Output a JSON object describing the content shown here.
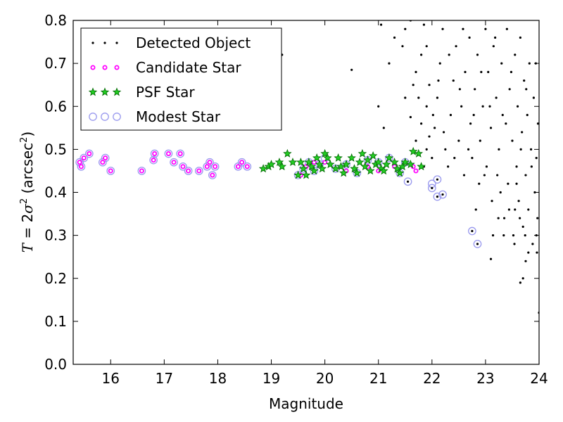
{
  "chart_data": {
    "type": "scatter",
    "xlabel": "Magnitude",
    "ylabel": {
      "var": "T",
      "eq": " = 2",
      "sigma": "σ",
      "sup": "2",
      "unit": " (arcsec",
      "unit_sup": "2",
      "close": ")"
    },
    "xlim": [
      15.3,
      24
    ],
    "ylim": [
      0,
      0.8
    ],
    "xticks": [
      "16",
      "17",
      "18",
      "19",
      "20",
      "21",
      "22",
      "23",
      "24"
    ],
    "yticks": [
      "0.0",
      "0.1",
      "0.2",
      "0.3",
      "0.4",
      "0.5",
      "0.6",
      "0.7",
      "0.8"
    ],
    "grid": false,
    "legend_position": "upper-left",
    "colors": {
      "detected": "#000000",
      "candidate": "#ff00ff",
      "psf_fill": "#22cc22",
      "psf_edge": "#006600",
      "modest": "#9999ee"
    },
    "series": [
      {
        "name": "Detected Object",
        "marker": "dot",
        "points": [
          [
            15.42,
            0.47
          ],
          [
            15.5,
            0.48
          ],
          [
            15.6,
            0.49
          ],
          [
            15.85,
            0.47
          ],
          [
            15.9,
            0.48
          ],
          [
            16.0,
            0.45
          ],
          [
            16.58,
            0.45
          ],
          [
            16.8,
            0.475
          ],
          [
            16.82,
            0.49
          ],
          [
            17.08,
            0.49
          ],
          [
            17.18,
            0.47
          ],
          [
            17.3,
            0.49
          ],
          [
            17.35,
            0.46
          ],
          [
            17.45,
            0.45
          ],
          [
            17.65,
            0.45
          ],
          [
            17.8,
            0.46
          ],
          [
            17.85,
            0.47
          ],
          [
            17.9,
            0.44
          ],
          [
            17.95,
            0.46
          ],
          [
            18.38,
            0.46
          ],
          [
            18.45,
            0.47
          ],
          [
            18.55,
            0.46
          ],
          [
            19.2,
            0.72
          ],
          [
            20.5,
            0.685
          ],
          [
            21.2,
            0.7
          ],
          [
            21.05,
            0.79
          ],
          [
            21.3,
            0.76
          ],
          [
            21.0,
            0.6
          ],
          [
            21.1,
            0.55
          ],
          [
            21.5,
            0.62
          ],
          [
            21.6,
            0.575
          ],
          [
            21.7,
            0.52
          ],
          [
            21.8,
            0.56
          ],
          [
            21.9,
            0.6
          ],
          [
            21.55,
            0.425
          ],
          [
            21.95,
            0.65
          ],
          [
            22.0,
            0.41
          ],
          [
            22.1,
            0.39
          ],
          [
            22.1,
            0.43
          ],
          [
            22.2,
            0.395
          ],
          [
            22.75,
            0.31
          ],
          [
            22.85,
            0.28
          ],
          [
            23.1,
            0.245
          ],
          [
            23.55,
            0.36
          ],
          [
            23.65,
            0.19
          ],
          [
            23.7,
            0.2
          ],
          [
            23.75,
            0.24
          ],
          [
            23.8,
            0.26
          ],
          [
            23.95,
            0.3
          ],
          [
            24.0,
            0.12
          ],
          [
            21.5,
            0.78
          ],
          [
            21.6,
            0.8
          ],
          [
            21.45,
            0.74
          ],
          [
            21.7,
            0.68
          ],
          [
            21.8,
            0.72
          ],
          [
            21.85,
            0.79
          ],
          [
            21.9,
            0.74
          ],
          [
            21.75,
            0.62
          ],
          [
            21.65,
            0.65
          ],
          [
            21.95,
            0.53
          ],
          [
            21.9,
            0.5
          ],
          [
            21.85,
            0.46
          ],
          [
            22.0,
            0.48
          ],
          [
            22.05,
            0.55
          ],
          [
            22.1,
            0.62
          ],
          [
            22.15,
            0.7
          ],
          [
            22.2,
            0.78
          ],
          [
            22.25,
            0.5
          ],
          [
            22.3,
            0.46
          ],
          [
            22.35,
            0.58
          ],
          [
            22.4,
            0.66
          ],
          [
            22.45,
            0.74
          ],
          [
            22.5,
            0.52
          ],
          [
            22.55,
            0.6
          ],
          [
            22.6,
            0.44
          ],
          [
            22.62,
            0.68
          ],
          [
            22.7,
            0.76
          ],
          [
            22.72,
            0.56
          ],
          [
            22.75,
            0.48
          ],
          [
            22.8,
            0.64
          ],
          [
            22.85,
            0.72
          ],
          [
            22.88,
            0.42
          ],
          [
            22.9,
            0.52
          ],
          [
            22.95,
            0.6
          ],
          [
            23.0,
            0.78
          ],
          [
            23.02,
            0.46
          ],
          [
            23.05,
            0.68
          ],
          [
            23.1,
            0.55
          ],
          [
            23.12,
            0.38
          ],
          [
            23.15,
            0.74
          ],
          [
            23.2,
            0.62
          ],
          [
            23.22,
            0.44
          ],
          [
            23.25,
            0.5
          ],
          [
            23.3,
            0.7
          ],
          [
            23.32,
            0.58
          ],
          [
            23.35,
            0.34
          ],
          [
            23.4,
            0.78
          ],
          [
            23.42,
            0.42
          ],
          [
            23.45,
            0.64
          ],
          [
            23.5,
            0.52
          ],
          [
            23.52,
            0.3
          ],
          [
            23.55,
            0.72
          ],
          [
            23.58,
            0.46
          ],
          [
            23.6,
            0.6
          ],
          [
            23.62,
            0.38
          ],
          [
            23.65,
            0.76
          ],
          [
            23.68,
            0.54
          ],
          [
            23.7,
            0.32
          ],
          [
            23.72,
            0.66
          ],
          [
            23.75,
            0.44
          ],
          [
            23.78,
            0.58
          ],
          [
            23.8,
            0.36
          ],
          [
            23.82,
            0.7
          ],
          [
            23.85,
            0.5
          ],
          [
            23.88,
            0.28
          ],
          [
            23.9,
            0.62
          ],
          [
            23.92,
            0.4
          ],
          [
            23.95,
            0.48
          ],
          [
            23.97,
            0.34
          ],
          [
            23.98,
            0.56
          ],
          [
            22.02,
            0.58
          ],
          [
            22.12,
            0.66
          ],
          [
            22.22,
            0.54
          ],
          [
            22.32,
            0.72
          ],
          [
            22.42,
            0.48
          ],
          [
            22.52,
            0.64
          ],
          [
            22.58,
            0.78
          ],
          [
            22.68,
            0.5
          ],
          [
            22.78,
            0.58
          ],
          [
            22.82,
            0.36
          ],
          [
            22.92,
            0.68
          ],
          [
            22.98,
            0.44
          ],
          [
            23.08,
            0.6
          ],
          [
            23.18,
            0.76
          ],
          [
            23.28,
            0.4
          ],
          [
            23.38,
            0.56
          ],
          [
            23.48,
            0.68
          ],
          [
            23.58,
            0.42
          ],
          [
            23.66,
            0.5
          ],
          [
            23.76,
            0.64
          ],
          [
            23.86,
            0.46
          ],
          [
            23.94,
            0.7
          ],
          [
            23.96,
            0.26
          ],
          [
            23.74,
            0.3
          ],
          [
            23.64,
            0.34
          ],
          [
            23.54,
            0.28
          ],
          [
            23.44,
            0.36
          ],
          [
            23.34,
            0.3
          ],
          [
            23.24,
            0.34
          ],
          [
            23.14,
            0.3
          ]
        ]
      },
      {
        "name": "Candidate Star",
        "marker": "small-circle",
        "points": [
          [
            15.42,
            0.47
          ],
          [
            15.45,
            0.46
          ],
          [
            15.5,
            0.48
          ],
          [
            15.6,
            0.49
          ],
          [
            15.85,
            0.47
          ],
          [
            15.9,
            0.48
          ],
          [
            16.0,
            0.45
          ],
          [
            16.58,
            0.45
          ],
          [
            16.8,
            0.475
          ],
          [
            16.82,
            0.49
          ],
          [
            17.08,
            0.49
          ],
          [
            17.18,
            0.47
          ],
          [
            17.3,
            0.49
          ],
          [
            17.35,
            0.46
          ],
          [
            17.45,
            0.45
          ],
          [
            17.65,
            0.45
          ],
          [
            17.8,
            0.46
          ],
          [
            17.85,
            0.47
          ],
          [
            17.9,
            0.44
          ],
          [
            17.95,
            0.46
          ],
          [
            18.38,
            0.46
          ],
          [
            18.45,
            0.47
          ],
          [
            18.55,
            0.46
          ],
          [
            19.55,
            0.44
          ],
          [
            19.65,
            0.46
          ],
          [
            19.8,
            0.47
          ],
          [
            20.0,
            0.47
          ],
          [
            20.4,
            0.45
          ],
          [
            20.8,
            0.46
          ],
          [
            21.0,
            0.45
          ],
          [
            21.3,
            0.46
          ],
          [
            21.65,
            0.46
          ],
          [
            21.7,
            0.45
          ]
        ]
      },
      {
        "name": "PSF Star",
        "marker": "star",
        "points": [
          [
            18.85,
            0.455
          ],
          [
            18.95,
            0.46
          ],
          [
            19.0,
            0.465
          ],
          [
            19.15,
            0.47
          ],
          [
            19.2,
            0.46
          ],
          [
            19.3,
            0.49
          ],
          [
            19.4,
            0.47
          ],
          [
            19.5,
            0.44
          ],
          [
            19.55,
            0.47
          ],
          [
            19.6,
            0.455
          ],
          [
            19.65,
            0.44
          ],
          [
            19.7,
            0.47
          ],
          [
            19.75,
            0.46
          ],
          [
            19.8,
            0.45
          ],
          [
            19.85,
            0.48
          ],
          [
            19.9,
            0.465
          ],
          [
            19.95,
            0.455
          ],
          [
            20.0,
            0.49
          ],
          [
            20.05,
            0.48
          ],
          [
            20.1,
            0.465
          ],
          [
            20.2,
            0.455
          ],
          [
            20.25,
            0.48
          ],
          [
            20.3,
            0.46
          ],
          [
            20.35,
            0.445
          ],
          [
            20.4,
            0.465
          ],
          [
            20.5,
            0.48
          ],
          [
            20.55,
            0.455
          ],
          [
            20.6,
            0.445
          ],
          [
            20.65,
            0.47
          ],
          [
            20.7,
            0.49
          ],
          [
            20.75,
            0.46
          ],
          [
            20.8,
            0.475
          ],
          [
            20.85,
            0.45
          ],
          [
            20.9,
            0.485
          ],
          [
            20.95,
            0.465
          ],
          [
            21.0,
            0.47
          ],
          [
            21.05,
            0.455
          ],
          [
            21.1,
            0.45
          ],
          [
            21.15,
            0.465
          ],
          [
            21.2,
            0.48
          ],
          [
            21.3,
            0.47
          ],
          [
            21.35,
            0.455
          ],
          [
            21.4,
            0.445
          ],
          [
            21.45,
            0.46
          ],
          [
            21.5,
            0.47
          ],
          [
            21.6,
            0.465
          ],
          [
            21.65,
            0.495
          ],
          [
            21.75,
            0.49
          ],
          [
            21.8,
            0.46
          ]
        ]
      },
      {
        "name": "Modest Star",
        "marker": "open-circle",
        "points": [
          [
            15.42,
            0.47
          ],
          [
            15.45,
            0.46
          ],
          [
            15.5,
            0.48
          ],
          [
            15.6,
            0.49
          ],
          [
            15.85,
            0.47
          ],
          [
            15.9,
            0.48
          ],
          [
            16.0,
            0.45
          ],
          [
            16.58,
            0.45
          ],
          [
            16.8,
            0.475
          ],
          [
            16.82,
            0.49
          ],
          [
            17.08,
            0.49
          ],
          [
            17.18,
            0.47
          ],
          [
            17.3,
            0.49
          ],
          [
            17.35,
            0.46
          ],
          [
            17.45,
            0.45
          ],
          [
            17.65,
            0.45
          ],
          [
            17.8,
            0.46
          ],
          [
            17.85,
            0.47
          ],
          [
            17.9,
            0.44
          ],
          [
            17.95,
            0.46
          ],
          [
            18.38,
            0.46
          ],
          [
            18.45,
            0.47
          ],
          [
            18.55,
            0.46
          ],
          [
            19.5,
            0.44
          ],
          [
            19.6,
            0.455
          ],
          [
            19.7,
            0.47
          ],
          [
            19.8,
            0.45
          ],
          [
            19.9,
            0.465
          ],
          [
            20.0,
            0.48
          ],
          [
            20.2,
            0.455
          ],
          [
            20.4,
            0.465
          ],
          [
            20.6,
            0.445
          ],
          [
            20.8,
            0.475
          ],
          [
            21.0,
            0.47
          ],
          [
            21.2,
            0.48
          ],
          [
            21.4,
            0.445
          ],
          [
            21.5,
            0.47
          ],
          [
            21.55,
            0.425
          ],
          [
            22.0,
            0.41
          ],
          [
            22.0,
            0.42
          ],
          [
            22.1,
            0.39
          ],
          [
            22.1,
            0.43
          ],
          [
            22.2,
            0.395
          ],
          [
            22.75,
            0.31
          ],
          [
            22.85,
            0.28
          ]
        ]
      }
    ]
  }
}
